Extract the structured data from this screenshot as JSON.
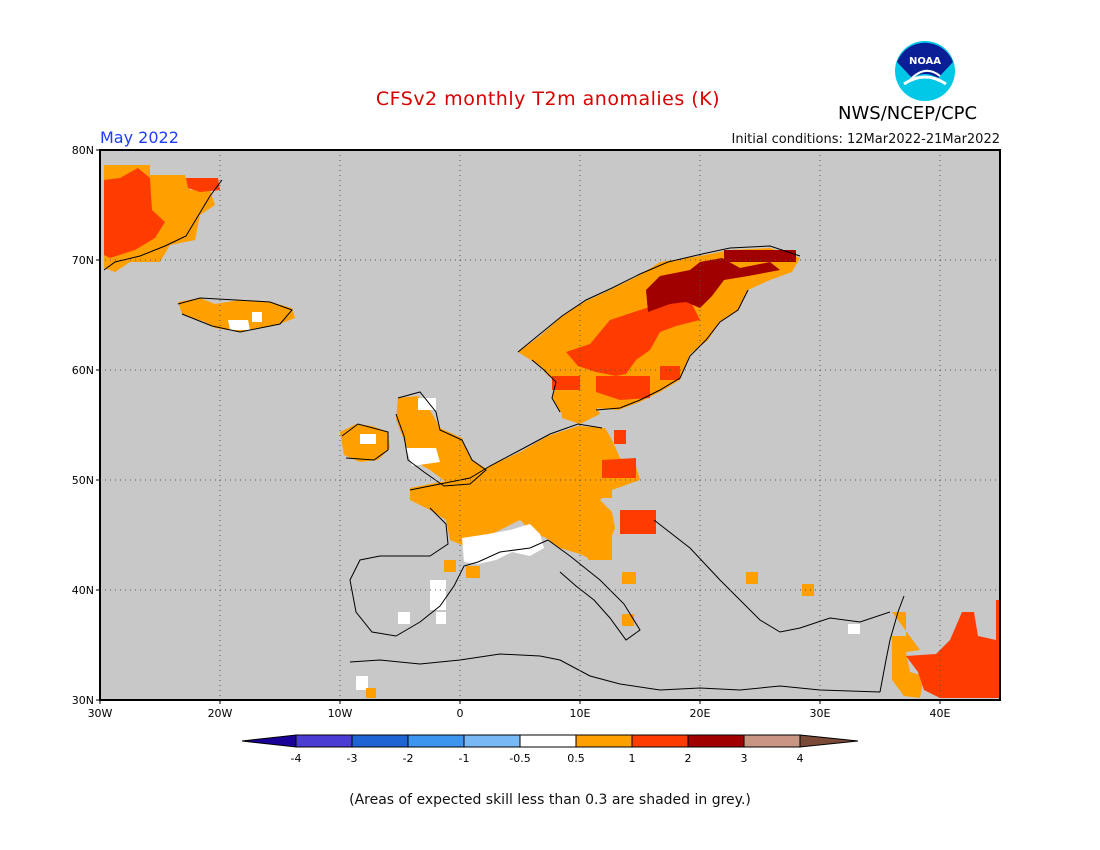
{
  "title": "CFSv2 monthly T2m anomalies (K)",
  "month_label": "May 2022",
  "initial_conditions": "Initial conditions: 12Mar2022-21Mar2022",
  "agency": "NWS/NCEP/CPC",
  "logo_text": "NOAA",
  "footnote": "(Areas of expected skill less than 0.3 are shaded in grey.)",
  "map": {
    "lat_labels": [
      "80N",
      "70N",
      "60N",
      "50N",
      "40N",
      "30N"
    ],
    "lon_labels": [
      "30W",
      "20W",
      "10W",
      "0",
      "10E",
      "20E",
      "30E",
      "40E"
    ],
    "background_color": "#c8c8c8"
  },
  "colorbar": {
    "tick_labels": [
      "-4",
      "-3",
      "-2",
      "-1",
      "-0.5",
      "0.5",
      "1",
      "2",
      "3",
      "4"
    ],
    "colors": [
      "#1a0096",
      "#4b3cd2",
      "#1e64d2",
      "#3c96f0",
      "#78b9f5",
      "#ffffff",
      "#ff9f00",
      "#ff3c00",
      "#a00000",
      "#c89682",
      "#7a4a36"
    ]
  },
  "anomaly_regions": [
    {
      "region": "Greenland east coast",
      "category": "1 to 2"
    },
    {
      "region": "Greenland east coast",
      "category": "0.5 to 1"
    },
    {
      "region": "Iceland",
      "category": "0.5 to 1"
    },
    {
      "region": "Ireland and Great Britain",
      "category": "0.5 to 1"
    },
    {
      "region": "France and Benelux",
      "category": "0.5 to 1"
    },
    {
      "region": "Germany",
      "category": "0.5 to 1"
    },
    {
      "region": "Southern France",
      "category": "-0.5 to 0.5"
    },
    {
      "region": "Southern Norway",
      "category": "0.5 to 1"
    },
    {
      "region": "Sweden",
      "category": "1 to 2"
    },
    {
      "region": "Northern Scandinavia",
      "category": "2 to 3"
    },
    {
      "region": "Northern Italy / Alps",
      "category": "0.5 to 1"
    },
    {
      "region": "Middle East",
      "category": "1 to 2"
    }
  ]
}
